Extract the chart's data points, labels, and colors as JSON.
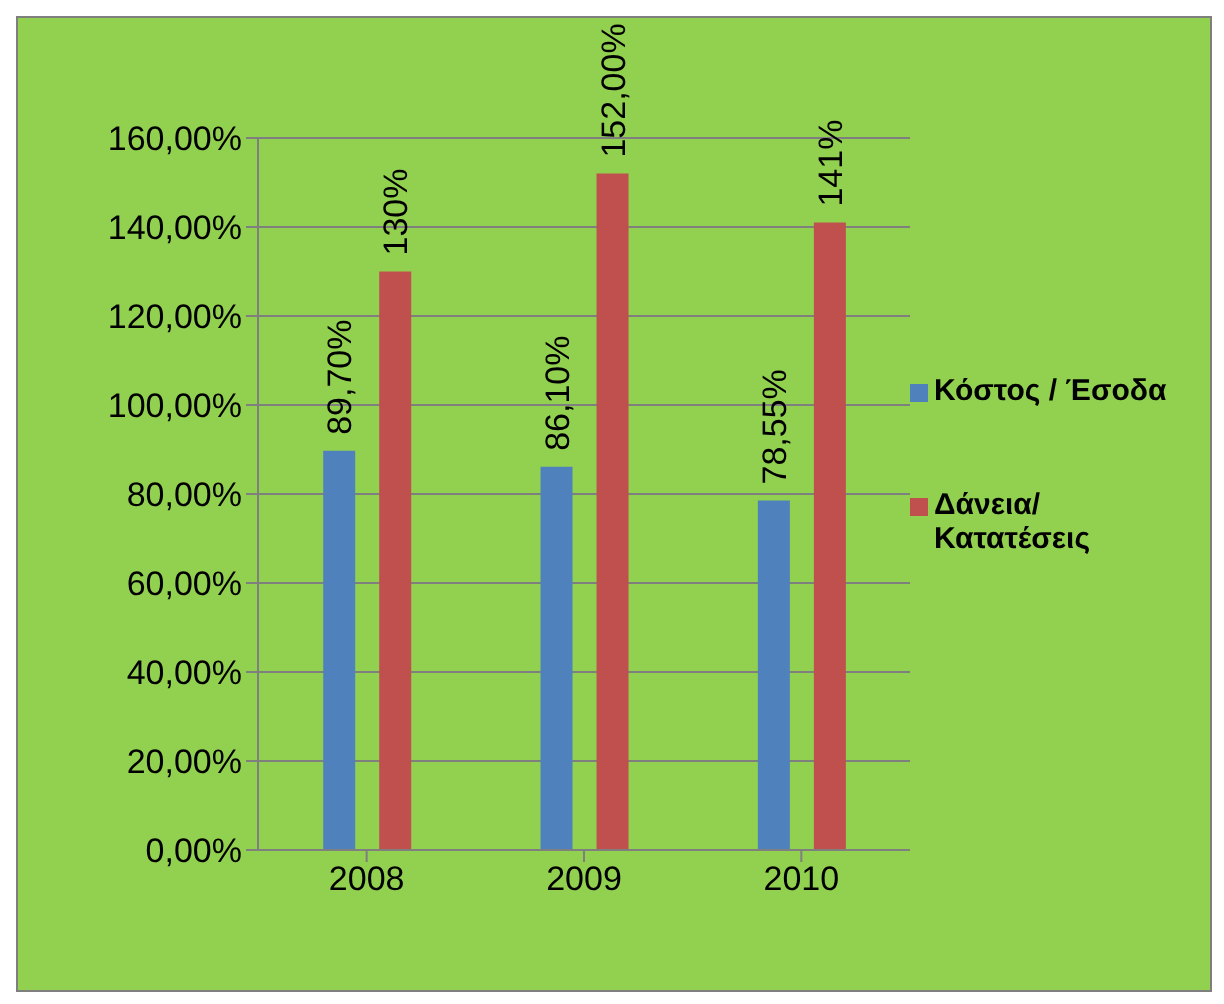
{
  "chart_data": {
    "type": "bar",
    "categories": [
      "2008",
      "2009",
      "2010"
    ],
    "series": [
      {
        "name": "Κόστος / Έσοδα",
        "color": "#4f81bd",
        "values": [
          89.7,
          86.1,
          78.55
        ],
        "value_labels": [
          "89,70%",
          "86,10%",
          "78,55%"
        ]
      },
      {
        "name": "Δάνεια/ Κατατέσεις",
        "color": "#c0504d",
        "values": [
          130,
          152,
          141
        ],
        "value_labels": [
          "130%",
          "152,00%",
          "141%"
        ]
      }
    ],
    "ylim": [
      0,
      160
    ],
    "yticks": [
      {
        "value": 0,
        "label": "0,00%"
      },
      {
        "value": 20,
        "label": "20,00%"
      },
      {
        "value": 40,
        "label": "40,00%"
      },
      {
        "value": 60,
        "label": "60,00%"
      },
      {
        "value": 80,
        "label": "80,00%"
      },
      {
        "value": 100,
        "label": "100,00%"
      },
      {
        "value": 120,
        "label": "120,00%"
      },
      {
        "value": 140,
        "label": "140,00%"
      },
      {
        "value": 160,
        "label": "160,00%"
      }
    ],
    "grid": "y",
    "legend": "right"
  }
}
